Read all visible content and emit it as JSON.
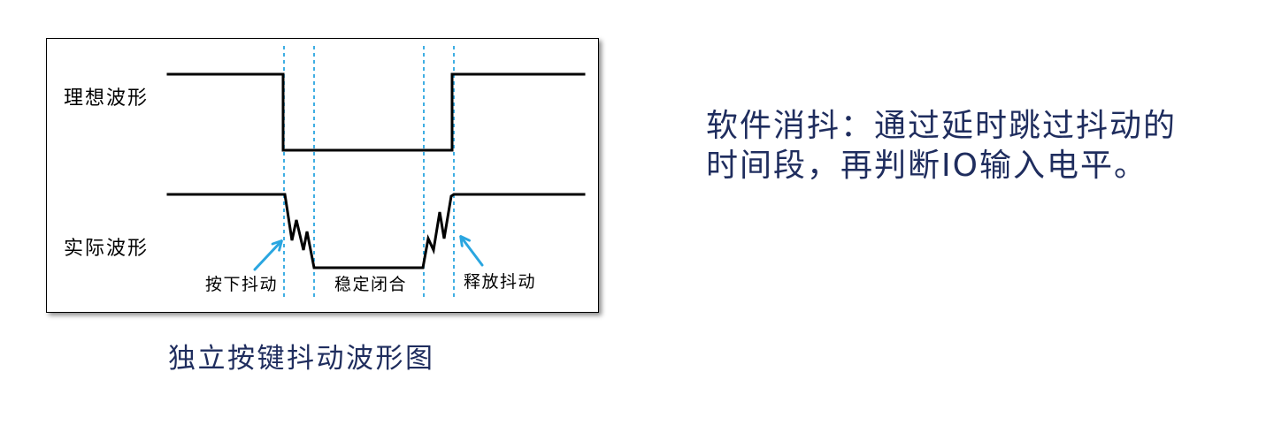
{
  "diagram": {
    "ideal_label": "理想波形",
    "actual_label": "实际波形",
    "press_bounce_label": "按下抖动",
    "stable_label": "稳定闭合",
    "release_bounce_label": "释放抖动",
    "caption": "独立按键抖动波形图"
  },
  "description": {
    "line1": "软件消抖：通过延时跳过抖动的",
    "line2": "时间段，再判断IO输入电平。"
  },
  "colors": {
    "text": "#1f2d5e",
    "guide_line": "#2aa6e0",
    "arrow": "#2aa6e0",
    "waveform": "#000000"
  }
}
